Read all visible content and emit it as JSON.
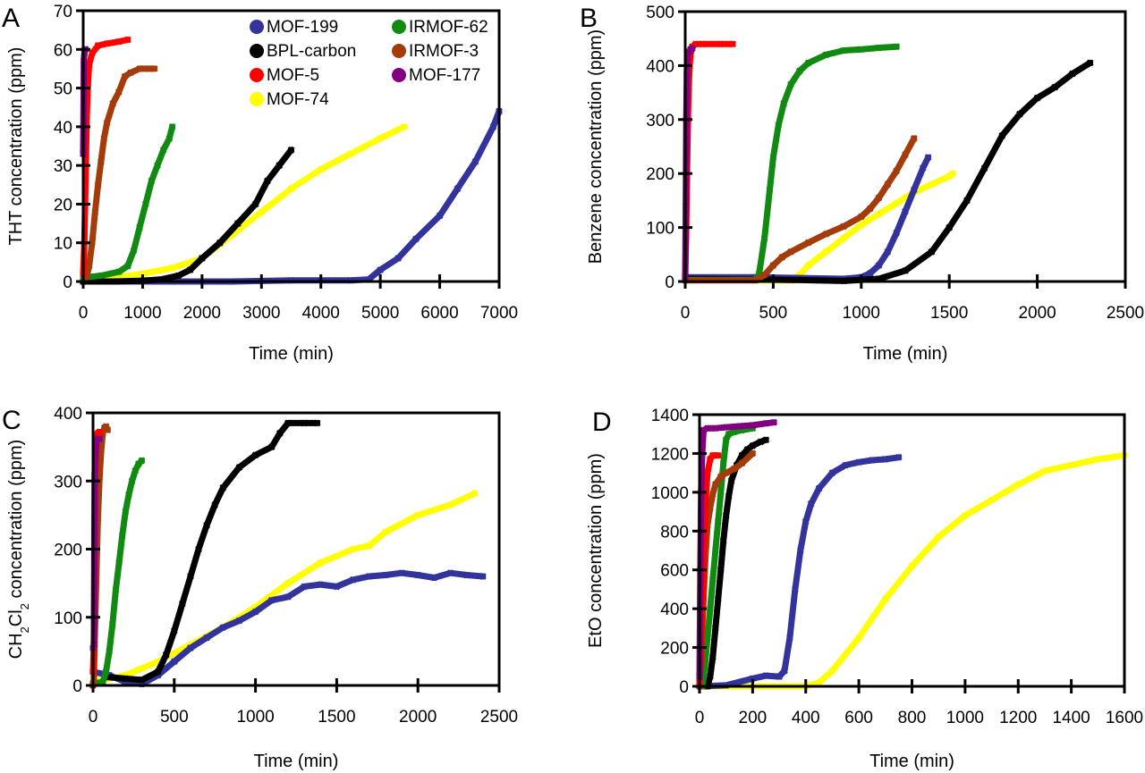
{
  "figure": {
    "legend": [
      {
        "name": "MOF-199",
        "color": "#33339c"
      },
      {
        "name": "BPL-carbon",
        "color": "#000000"
      },
      {
        "name": "MOF-5",
        "color": "#ff0000"
      },
      {
        "name": "MOF-74",
        "color": "#ffff00"
      },
      {
        "name": "IRMOF-62",
        "color": "#118a11"
      },
      {
        "name": "IRMOF-3",
        "color": "#a33c0a"
      },
      {
        "name": "MOF-177",
        "color": "#800080"
      }
    ]
  },
  "chart_data": [
    {
      "panel": "A",
      "type": "scatter",
      "title": "",
      "xlabel": "Time (min)",
      "ylabel": "THT concentration (ppm)",
      "xlim": [
        0,
        7000
      ],
      "ylim": [
        0,
        70
      ],
      "xticks": [
        0,
        1000,
        2000,
        3000,
        4000,
        5000,
        6000,
        7000
      ],
      "yticks": [
        0,
        10,
        20,
        30,
        40,
        50,
        60,
        70
      ],
      "grid": false,
      "legend_position": "top-right",
      "series": [
        {
          "name": "MOF-199",
          "x": [
            0,
            1500,
            2500,
            3500,
            4500,
            4800,
            5000,
            5300,
            5600,
            6000,
            6300,
            6600,
            6900,
            7000
          ],
          "y": [
            0,
            0,
            0,
            0.3,
            0.3,
            0.5,
            3,
            6,
            11,
            17,
            24,
            31,
            40,
            44
          ]
        },
        {
          "name": "BPL-carbon",
          "x": [
            0,
            500,
            1000,
            1300,
            1600,
            1800,
            2000,
            2300,
            2600,
            2900,
            3100,
            3300,
            3500
          ],
          "y": [
            0,
            0,
            0.2,
            0.5,
            1.5,
            3,
            6,
            10,
            15,
            20,
            26,
            30,
            34
          ]
        },
        {
          "name": "MOF-5",
          "x": [
            0,
            20,
            40,
            60,
            80,
            100,
            150,
            250,
            400,
            600,
            750
          ],
          "y": [
            2,
            10,
            27,
            43,
            51,
            56,
            59,
            61,
            61.5,
            62,
            62.5
          ]
        },
        {
          "name": "MOF-74",
          "x": [
            0,
            500,
            1000,
            1500,
            2000,
            2500,
            3000,
            3500,
            4000,
            4500,
            5000,
            5400
          ],
          "y": [
            0,
            1,
            2,
            3.5,
            6,
            12,
            18,
            24,
            29,
            33,
            37,
            40
          ]
        },
        {
          "name": "IRMOF-62",
          "x": [
            0,
            300,
            600,
            750,
            850,
            950,
            1050,
            1150,
            1250,
            1350,
            1450,
            1500
          ],
          "y": [
            1,
            1.5,
            2.5,
            4,
            8,
            14,
            20,
            26,
            30,
            34,
            37,
            40
          ]
        },
        {
          "name": "IRMOF-3",
          "x": [
            50,
            100,
            150,
            200,
            250,
            300,
            350,
            400,
            500,
            600,
            700,
            800,
            950,
            1100,
            1200
          ],
          "y": [
            0.5,
            4,
            10,
            18,
            25,
            31,
            37,
            41,
            46,
            49,
            53,
            54,
            55,
            55,
            55
          ]
        },
        {
          "name": "MOF-177",
          "x": [
            0,
            10,
            20,
            30,
            40
          ],
          "y": [
            33,
            57,
            59,
            60,
            60
          ]
        }
      ]
    },
    {
      "panel": "B",
      "type": "scatter",
      "title": "",
      "xlabel": "Time (min)",
      "ylabel": "Benzene concentration (ppm)",
      "xlim": [
        0,
        2500
      ],
      "ylim": [
        0,
        500
      ],
      "xticks": [
        0,
        500,
        1000,
        1500,
        2000,
        2500
      ],
      "yticks": [
        0,
        100,
        200,
        300,
        400,
        500
      ],
      "grid": false,
      "legend_position": "none",
      "series": [
        {
          "name": "MOF-199",
          "x": [
            0,
            400,
            900,
            1000,
            1050,
            1100,
            1150,
            1200,
            1250,
            1300,
            1350,
            1380
          ],
          "y": [
            8,
            8,
            5,
            8,
            15,
            30,
            55,
            90,
            130,
            170,
            210,
            230
          ]
        },
        {
          "name": "BPL-carbon",
          "x": [
            0,
            600,
            900,
            1100,
            1250,
            1400,
            1500,
            1600,
            1700,
            1800,
            1900,
            2000,
            2100,
            2200,
            2300
          ],
          "y": [
            5,
            3,
            1,
            5,
            20,
            55,
            100,
            150,
            210,
            270,
            310,
            340,
            360,
            385,
            405
          ]
        },
        {
          "name": "MOF-5",
          "x": [
            0,
            5,
            10,
            15,
            20,
            25,
            30,
            40,
            60,
            100,
            200,
            270
          ],
          "y": [
            10,
            85,
            195,
            295,
            360,
            400,
            420,
            435,
            440,
            440,
            440,
            440
          ]
        },
        {
          "name": "MOF-74",
          "x": [
            0,
            400,
            600,
            650,
            700,
            800,
            900,
            1000,
            1100,
            1200,
            1300,
            1400,
            1500,
            1520
          ],
          "y": [
            5,
            2,
            2,
            12,
            30,
            55,
            80,
            105,
            125,
            145,
            165,
            180,
            195,
            200
          ]
        },
        {
          "name": "IRMOF-62",
          "x": [
            0,
            400,
            420,
            450,
            480,
            500,
            530,
            560,
            600,
            650,
            700,
            800,
            900,
            1000,
            1100,
            1200
          ],
          "y": [
            3,
            3,
            15,
            80,
            170,
            230,
            290,
            330,
            365,
            390,
            405,
            420,
            428,
            430,
            433,
            435
          ]
        },
        {
          "name": "IRMOF-3",
          "x": [
            0,
            400,
            450,
            500,
            550,
            600,
            700,
            800,
            900,
            1000,
            1050,
            1100,
            1150,
            1200,
            1250,
            1300
          ],
          "y": [
            2,
            2,
            12,
            30,
            45,
            55,
            72,
            88,
            102,
            120,
            135,
            155,
            180,
            205,
            235,
            265
          ]
        },
        {
          "name": "MOF-177",
          "x": [
            0,
            3,
            6,
            9,
            12,
            20,
            30,
            40
          ],
          "y": [
            5,
            140,
            300,
            385,
            415,
            425,
            430,
            432
          ]
        }
      ]
    },
    {
      "panel": "C",
      "type": "scatter",
      "title": "",
      "xlabel": "Time (min)",
      "ylabel": "CH2Cl2 concentration (ppm)",
      "xlim": [
        0,
        2500
      ],
      "ylim": [
        0,
        400
      ],
      "xticks": [
        0,
        500,
        1000,
        1500,
        2000,
        2500
      ],
      "yticks": [
        0,
        100,
        200,
        300,
        400
      ],
      "grid": false,
      "legend_position": "none",
      "series": [
        {
          "name": "MOF-199",
          "x": [
            0,
            100,
            200,
            300,
            400,
            500,
            600,
            700,
            800,
            900,
            1000,
            1100,
            1200,
            1300,
            1400,
            1500,
            1600,
            1700,
            1800,
            1900,
            2000,
            2100,
            2200,
            2300,
            2400
          ],
          "y": [
            20,
            15,
            5,
            2,
            15,
            35,
            55,
            70,
            85,
            95,
            108,
            125,
            130,
            145,
            148,
            145,
            155,
            160,
            162,
            165,
            162,
            158,
            165,
            162,
            160
          ]
        },
        {
          "name": "BPL-carbon",
          "x": [
            100,
            200,
            300,
            400,
            450,
            500,
            550,
            600,
            650,
            700,
            750,
            800,
            900,
            1000,
            1100,
            1150,
            1200,
            1300,
            1380
          ],
          "y": [
            12,
            10,
            8,
            20,
            45,
            80,
            120,
            160,
            200,
            235,
            265,
            290,
            320,
            338,
            350,
            370,
            385,
            385,
            385
          ]
        },
        {
          "name": "MOF-5",
          "x": [
            0,
            5,
            10,
            15,
            20,
            25,
            30,
            40
          ],
          "y": [
            20,
            60,
            200,
            330,
            360,
            368,
            370,
            372
          ]
        },
        {
          "name": "MOF-74",
          "x": [
            0,
            200,
            400,
            600,
            800,
            1000,
            1200,
            1400,
            1600,
            1700,
            1800,
            2000,
            2200,
            2350
          ],
          "y": [
            5,
            15,
            35,
            60,
            85,
            115,
            150,
            180,
            200,
            205,
            225,
            250,
            265,
            282
          ]
        },
        {
          "name": "IRMOF-62",
          "x": [
            0,
            60,
            80,
            100,
            120,
            140,
            160,
            180,
            200,
            220,
            240,
            260,
            280,
            300
          ],
          "y": [
            3,
            5,
            20,
            50,
            90,
            140,
            180,
            220,
            255,
            280,
            300,
            315,
            325,
            330
          ]
        },
        {
          "name": "IRMOF-3",
          "x": [
            0,
            5,
            10,
            20,
            30,
            40,
            50,
            60,
            70,
            80,
            90
          ],
          "y": [
            0,
            10,
            60,
            155,
            245,
            305,
            345,
            370,
            378,
            380,
            375
          ]
        },
        {
          "name": "MOF-177",
          "x": [
            0,
            5,
            10,
            20,
            30,
            40
          ],
          "y": [
            55,
            60,
            310,
            360,
            362,
            362
          ]
        }
      ]
    },
    {
      "panel": "D",
      "type": "scatter",
      "title": "",
      "xlabel": "Time (min)",
      "ylabel": "EtO concentration (ppm)",
      "xlim": [
        0,
        1600
      ],
      "ylim": [
        0,
        1400
      ],
      "xticks": [
        0,
        200,
        400,
        600,
        800,
        1000,
        1200,
        1400,
        1600
      ],
      "yticks": [
        0,
        200,
        400,
        600,
        800,
        1000,
        1200,
        1400
      ],
      "grid": false,
      "legend_position": "none",
      "series": [
        {
          "name": "MOF-199",
          "x": [
            0,
            100,
            200,
            250,
            300,
            320,
            340,
            360,
            380,
            400,
            420,
            450,
            500,
            550,
            600,
            650,
            700,
            750
          ],
          "y": [
            0,
            5,
            40,
            55,
            50,
            80,
            250,
            500,
            700,
            850,
            940,
            1020,
            1100,
            1140,
            1155,
            1165,
            1170,
            1180
          ]
        },
        {
          "name": "BPL-carbon",
          "x": [
            30,
            40,
            50,
            60,
            70,
            80,
            90,
            100,
            110,
            120,
            140,
            160,
            180,
            200,
            230,
            250
          ],
          "y": [
            0,
            50,
            150,
            300,
            450,
            600,
            750,
            880,
            980,
            1060,
            1140,
            1190,
            1220,
            1240,
            1260,
            1270
          ]
        },
        {
          "name": "MOF-5",
          "x": [
            0,
            5,
            10,
            15,
            20,
            25,
            30,
            40,
            50,
            60,
            70
          ],
          "y": [
            20,
            150,
            400,
            650,
            850,
            1000,
            1100,
            1170,
            1190,
            1190,
            1190
          ]
        },
        {
          "name": "MOF-74",
          "x": [
            40,
            200,
            400,
            450,
            500,
            600,
            700,
            800,
            900,
            1000,
            1100,
            1200,
            1300,
            1400,
            1500,
            1600
          ],
          "y": [
            0,
            0,
            0,
            20,
            80,
            250,
            450,
            620,
            770,
            880,
            960,
            1040,
            1110,
            1140,
            1170,
            1190
          ]
        },
        {
          "name": "IRMOF-62",
          "x": [
            10,
            20,
            30,
            40,
            50,
            60,
            70,
            80,
            90,
            100,
            110,
            130,
            160,
            200
          ],
          "y": [
            0,
            100,
            250,
            400,
            550,
            700,
            850,
            1000,
            1150,
            1270,
            1300,
            1310,
            1320,
            1330
          ]
        },
        {
          "name": "IRMOF-3",
          "x": [
            0,
            5,
            10,
            15,
            20,
            25,
            30,
            40,
            50,
            60,
            80,
            100,
            130,
            160,
            200
          ],
          "y": [
            0,
            150,
            300,
            450,
            600,
            730,
            830,
            920,
            990,
            1040,
            1080,
            1100,
            1120,
            1150,
            1200
          ]
        },
        {
          "name": "MOF-177",
          "x": [
            0,
            3,
            6,
            10,
            15,
            30,
            60,
            100,
            150,
            200,
            250,
            280
          ],
          "y": [
            50,
            600,
            1000,
            1200,
            1320,
            1330,
            1330,
            1335,
            1340,
            1345,
            1355,
            1360
          ]
        }
      ]
    }
  ]
}
